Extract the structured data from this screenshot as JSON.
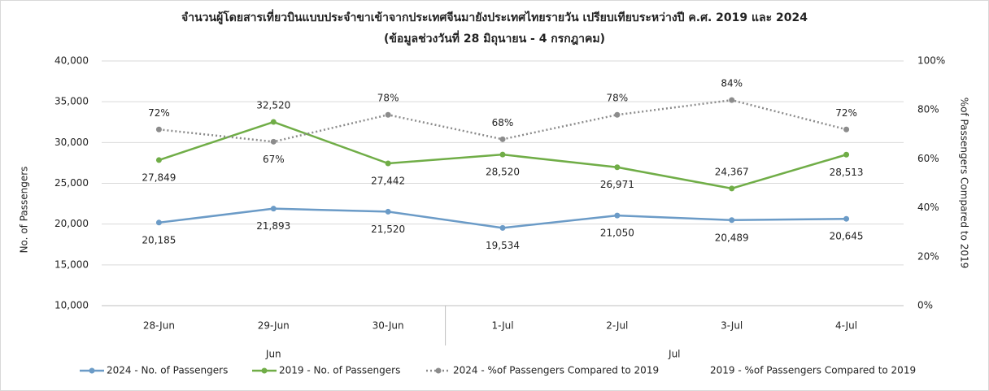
{
  "chart_data": {
    "type": "line",
    "title": "จำนวนผู้โดยสารเที่ยวบินแบบประจำขาเข้าจากประเทศจีนมายังประเทศไทยรายวัน เปรียบเทียบระหว่างปี ค.ศ. 2019 และ 2024",
    "subtitle": "(ข้อมูลช่วงวันที่ 28 มิถุนายน - 4 กรกฎาคม)",
    "y_label": "No. of Passengers",
    "y2_label": "%of Passengers Compared to 2019",
    "categories": [
      "28-Jun",
      "29-Jun",
      "30-Jun",
      "1-Jul",
      "2-Jul",
      "3-Jul",
      "4-Jul"
    ],
    "groups": [
      "Jun",
      "Jul"
    ],
    "ylim": [
      10000,
      40000
    ],
    "yticks": [
      {
        "value": 10000,
        "label": "10,000"
      },
      {
        "value": 15000,
        "label": "15,000"
      },
      {
        "value": 20000,
        "label": "20,000"
      },
      {
        "value": 25000,
        "label": "25,000"
      },
      {
        "value": 30000,
        "label": "30,000"
      },
      {
        "value": 35000,
        "label": "35,000"
      },
      {
        "value": 40000,
        "label": "40,000"
      }
    ],
    "y2lim": [
      0,
      100
    ],
    "y2ticks": [
      {
        "value": 0,
        "label": "0%"
      },
      {
        "value": 20,
        "label": "20%"
      },
      {
        "value": 40,
        "label": "40%"
      },
      {
        "value": 60,
        "label": "60%"
      },
      {
        "value": 80,
        "label": "80%"
      },
      {
        "value": 100,
        "label": "100%"
      }
    ],
    "grid": true,
    "legend": "bottom",
    "series": [
      {
        "name": "2024 - No. of Passengers",
        "color": "#6b9bc7",
        "values": [
          20185,
          21893,
          21520,
          19534,
          21050,
          20489,
          20645
        ],
        "value_labels": [
          "20,185",
          "21,893",
          "21,520",
          "19,534",
          "21,050",
          "20,489",
          "20,645"
        ]
      },
      {
        "name": "2019 - No. of Passengers",
        "color": "#70ad47",
        "values": [
          27849,
          32520,
          27442,
          28520,
          26971,
          24367,
          28513
        ],
        "value_labels": [
          "27,849",
          "32,520",
          "27,442",
          "28,520",
          "26,971",
          "24,367",
          "28,513"
        ]
      },
      {
        "name": "2024 - %of Passengers Compared to 2019",
        "color": "#8c8c8c",
        "axis": "y2",
        "dash": "dotted",
        "values": [
          72,
          67,
          78,
          68,
          78,
          84,
          72
        ],
        "value_labels": [
          "72%",
          "67%",
          "78%",
          "68%",
          "78%",
          "84%",
          "72%"
        ]
      },
      {
        "name": "2019 - %of Passengers Compared to 2019",
        "color": "#4472c4",
        "axis": "y2",
        "values": [
          null,
          null,
          null,
          null,
          null,
          null,
          null
        ]
      }
    ]
  }
}
